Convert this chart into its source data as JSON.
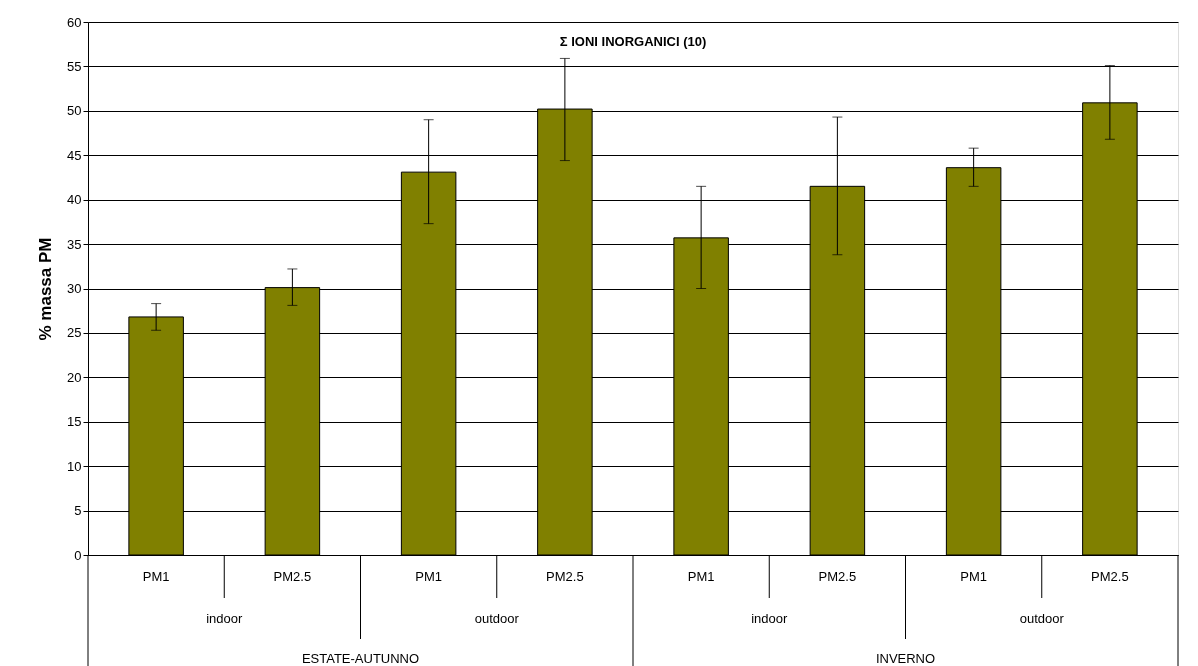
{
  "chart_data": {
    "type": "bar",
    "title": "Σ IONI INORGANICI (10)",
    "ylabel": "% massa PM",
    "categories": [
      "PM1",
      "PM2.5",
      "PM1",
      "PM2.5",
      "PM1",
      "PM2.5",
      "PM1",
      "PM2.5"
    ],
    "values": [
      26.8,
      30.1,
      43.1,
      50.2,
      35.7,
      41.5,
      43.6,
      50.9
    ],
    "errors": [
      [
        25.3,
        28.3
      ],
      [
        28.1,
        32.2
      ],
      [
        37.3,
        49.0
      ],
      [
        44.4,
        55.9
      ],
      [
        30.0,
        41.5
      ],
      [
        33.8,
        49.3
      ],
      [
        41.5,
        45.8
      ],
      [
        46.8,
        55.1
      ]
    ],
    "color": "#808000",
    "ylim": [
      0,
      60
    ],
    "yticks": [
      0,
      5,
      10,
      15,
      20,
      25,
      30,
      35,
      40,
      45,
      50,
      55,
      60
    ],
    "grid": "y",
    "annotations": [
      "indoor",
      "outdoor",
      "indoor",
      "outdoor",
      "ESTATE-AUTUNNO",
      "INVERNO"
    ]
  }
}
